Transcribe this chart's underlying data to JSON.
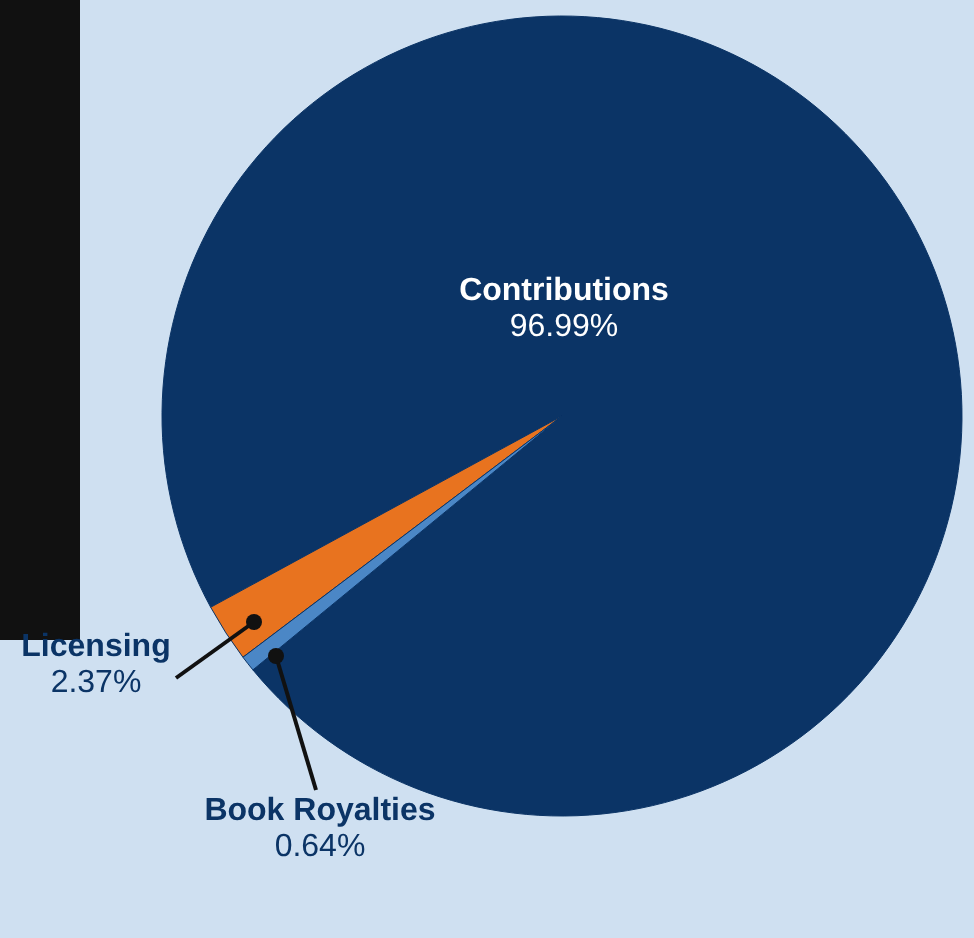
{
  "chart_data": {
    "type": "pie",
    "categories": [
      "Contributions",
      "Licensing",
      "Book Royalties"
    ],
    "values": [
      96.99,
      2.37,
      0.64
    ],
    "colors": [
      "#0b3466",
      "#e8731f",
      "#4b87c6"
    ],
    "value_labels": [
      "96.99%",
      "2.37%",
      "0.64%"
    ]
  }
}
